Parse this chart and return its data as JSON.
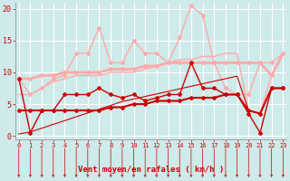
{
  "x": [
    0,
    1,
    2,
    3,
    4,
    5,
    6,
    7,
    8,
    9,
    10,
    11,
    12,
    13,
    14,
    15,
    16,
    17,
    18,
    19,
    20,
    21,
    22,
    23
  ],
  "background_color": "#ceeaea",
  "grid_color": "#b0d0d0",
  "xlabel": "Vent moyen/en rafales ( km/h )",
  "xlabel_color": "#cc0000",
  "tick_color": "#cc0000",
  "ylabel_ticks": [
    0,
    5,
    10,
    15,
    20
  ],
  "ylim": [
    0,
    21
  ],
  "xlim": [
    -0.3,
    23.3
  ],
  "series": [
    {
      "y": [
        9.0,
        0.5,
        4.0,
        4.0,
        6.5,
        6.5,
        6.5,
        7.5,
        6.5,
        6.0,
        6.5,
        5.5,
        6.0,
        6.5,
        6.5,
        11.5,
        7.5,
        7.5,
        6.5,
        6.5,
        3.5,
        0.5,
        7.5,
        7.5
      ],
      "color": "#cc0000",
      "linewidth": 1.0,
      "marker": "D",
      "markersize": 2,
      "zorder": 5
    },
    {
      "y": [
        4.0,
        4.0,
        4.0,
        4.0,
        4.0,
        4.0,
        4.0,
        4.0,
        4.5,
        4.5,
        5.0,
        5.0,
        5.5,
        5.5,
        5.5,
        6.0,
        6.0,
        6.0,
        6.5,
        6.5,
        4.0,
        3.5,
        7.5,
        7.5
      ],
      "color": "#cc0000",
      "linewidth": 1.5,
      "marker": "D",
      "markersize": 2,
      "zorder": 4
    },
    {
      "y": [
        0.3,
        0.6,
        1.2,
        1.8,
        2.4,
        3.0,
        3.6,
        4.2,
        4.8,
        5.4,
        5.8,
        6.2,
        6.6,
        7.0,
        7.4,
        7.8,
        8.2,
        8.6,
        9.0,
        9.4,
        4.0,
        3.5,
        7.5,
        7.5
      ],
      "color": "#cc0000",
      "linewidth": 0.8,
      "marker": null,
      "markersize": 0,
      "zorder": 3
    },
    {
      "y": [
        9.0,
        6.5,
        7.5,
        9.0,
        9.5,
        13.0,
        13.0,
        17.0,
        11.5,
        11.5,
        15.0,
        13.0,
        13.0,
        11.5,
        15.5,
        20.5,
        19.0,
        11.5,
        7.5,
        6.5,
        6.5,
        11.5,
        11.5,
        13.0
      ],
      "color": "#ffaaaa",
      "linewidth": 1.0,
      "marker": "D",
      "markersize": 2,
      "zorder": 2
    },
    {
      "y": [
        9.0,
        9.0,
        9.5,
        9.5,
        10.0,
        10.0,
        10.0,
        10.0,
        10.5,
        10.5,
        10.5,
        11.0,
        11.0,
        11.5,
        11.5,
        11.5,
        11.5,
        11.5,
        11.5,
        11.5,
        11.5,
        11.5,
        9.5,
        13.0
      ],
      "color": "#ffaaaa",
      "linewidth": 2.0,
      "marker": "D",
      "markersize": 2,
      "zorder": 1
    },
    {
      "y": [
        6.5,
        6.5,
        7.5,
        8.5,
        9.0,
        9.5,
        9.5,
        9.5,
        10.0,
        10.0,
        10.0,
        10.5,
        11.0,
        11.5,
        12.0,
        12.0,
        12.5,
        12.5,
        13.0,
        13.0,
        4.0,
        3.5,
        9.5,
        13.0
      ],
      "color": "#ffaaaa",
      "linewidth": 1.0,
      "marker": null,
      "markersize": 0,
      "zorder": 1
    }
  ],
  "arrow_color": "#cc0000",
  "arrow_angles": [
    225,
    270,
    270,
    270,
    270,
    270,
    270,
    270,
    270,
    270,
    270,
    270,
    270,
    270,
    270,
    270,
    270,
    270,
    270,
    270,
    270,
    270,
    270,
    270
  ]
}
